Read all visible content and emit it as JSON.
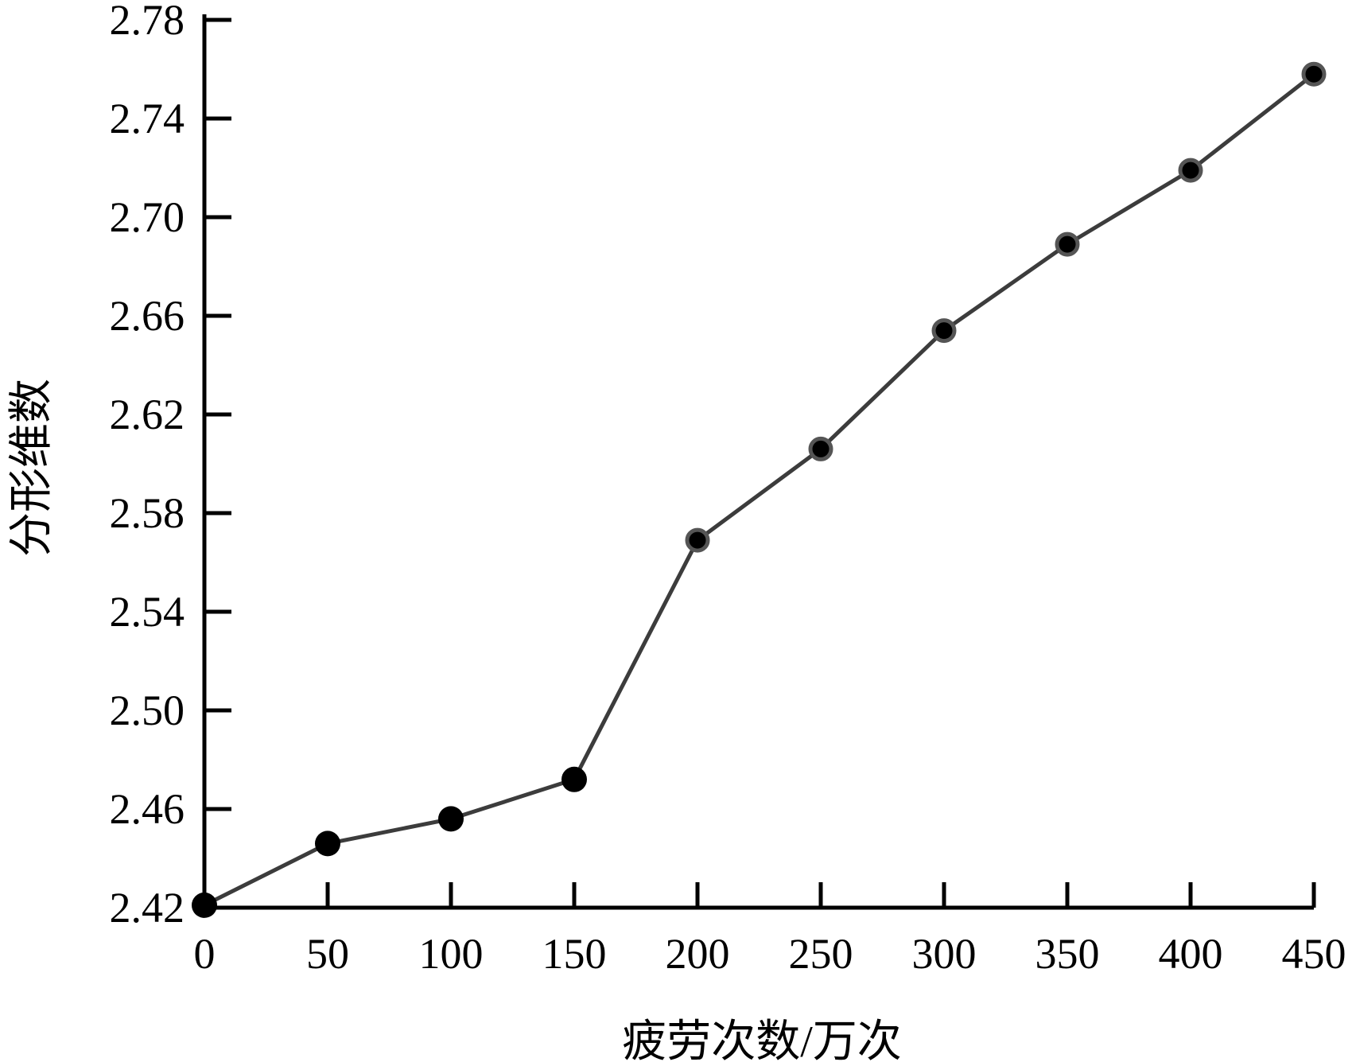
{
  "chart_data": {
    "type": "line",
    "title": "",
    "xlabel": "疲劳次数/万次",
    "ylabel": "分形维数",
    "xlim": [
      0,
      450
    ],
    "ylim": [
      2.42,
      2.78
    ],
    "x_ticks": [
      "0",
      "50",
      "100",
      "150",
      "200",
      "250",
      "300",
      "350",
      "400",
      "450"
    ],
    "y_ticks": [
      "2.42",
      "2.46",
      "2.50",
      "2.54",
      "2.58",
      "2.62",
      "2.66",
      "2.70",
      "2.74",
      "2.78"
    ],
    "grid": false,
    "legend": "none",
    "line_color": "#3c3c3c",
    "marker_color": "#000000",
    "series": [
      {
        "x": [
          0,
          50,
          100,
          150,
          200,
          250,
          300,
          350,
          400,
          450
        ],
        "y": [
          2.421,
          2.446,
          2.456,
          2.472,
          2.569,
          2.606,
          2.654,
          2.689,
          2.719,
          2.758
        ]
      }
    ]
  }
}
